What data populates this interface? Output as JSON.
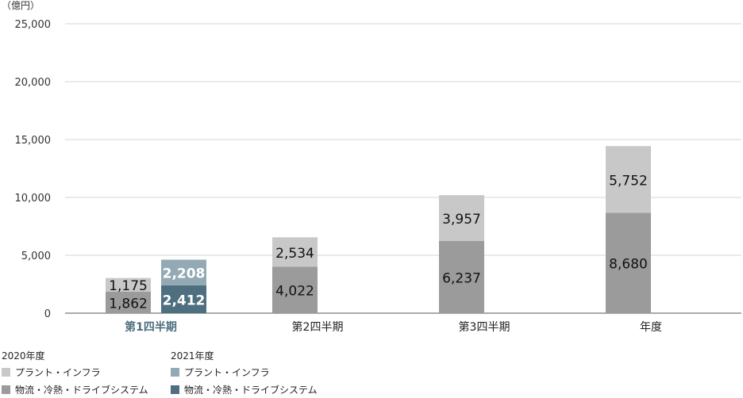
{
  "chart_data": {
    "type": "bar",
    "stacked": true,
    "unit_label": "（億円）",
    "ylim": [
      0,
      25000
    ],
    "yticks": [
      0,
      5000,
      10000,
      15000,
      20000,
      25000
    ],
    "ytick_labels": [
      "0",
      "5,000",
      "10,000",
      "15,000",
      "20,000",
      "25,000"
    ],
    "grid": true,
    "categories": [
      "第1四半期",
      "第2四半期",
      "第3四半期",
      "年度"
    ],
    "highlight_category_color": "#4e6f80",
    "groups": [
      {
        "year": "2020年度",
        "series": [
          {
            "name": "物流・冷熱・ドライブシステム",
            "color": "#9b9b9b",
            "values": [
              1862,
              4022,
              6237,
              8680
            ],
            "labels": [
              "1,862",
              "4,022",
              "6,237",
              "8,680"
            ]
          },
          {
            "name": "プラント・インフラ",
            "color": "#c8c8c8",
            "values": [
              1175,
              2534,
              3957,
              5752
            ],
            "labels": [
              "1,175",
              "2,534",
              "3,957",
              "5,752"
            ]
          }
        ]
      },
      {
        "year": "2021年度",
        "series": [
          {
            "name": "物流・冷熱・ドライブシステム",
            "color": "#4e6f80",
            "values": [
              2412,
              null,
              null,
              null
            ],
            "labels": [
              "2,412",
              "",
              "",
              ""
            ]
          },
          {
            "name": "プラント・インフラ",
            "color": "#93aab4",
            "values": [
              2208,
              null,
              null,
              null
            ],
            "labels": [
              "2,208",
              "",
              "",
              ""
            ]
          }
        ]
      }
    ],
    "legend": {
      "placement": "bottom-left",
      "groups": [
        {
          "title": "2020年度",
          "items": [
            {
              "label": "プラント・インフラ",
              "color": "#c8c8c8"
            },
            {
              "label": "物流・冷熱・ドライブシステム",
              "color": "#9b9b9b"
            }
          ]
        },
        {
          "title": "2021年度",
          "items": [
            {
              "label": "プラント・インフラ",
              "color": "#93aab4"
            },
            {
              "label": "物流・冷熱・ドライブシステム",
              "color": "#4e6f80"
            }
          ]
        }
      ]
    }
  }
}
